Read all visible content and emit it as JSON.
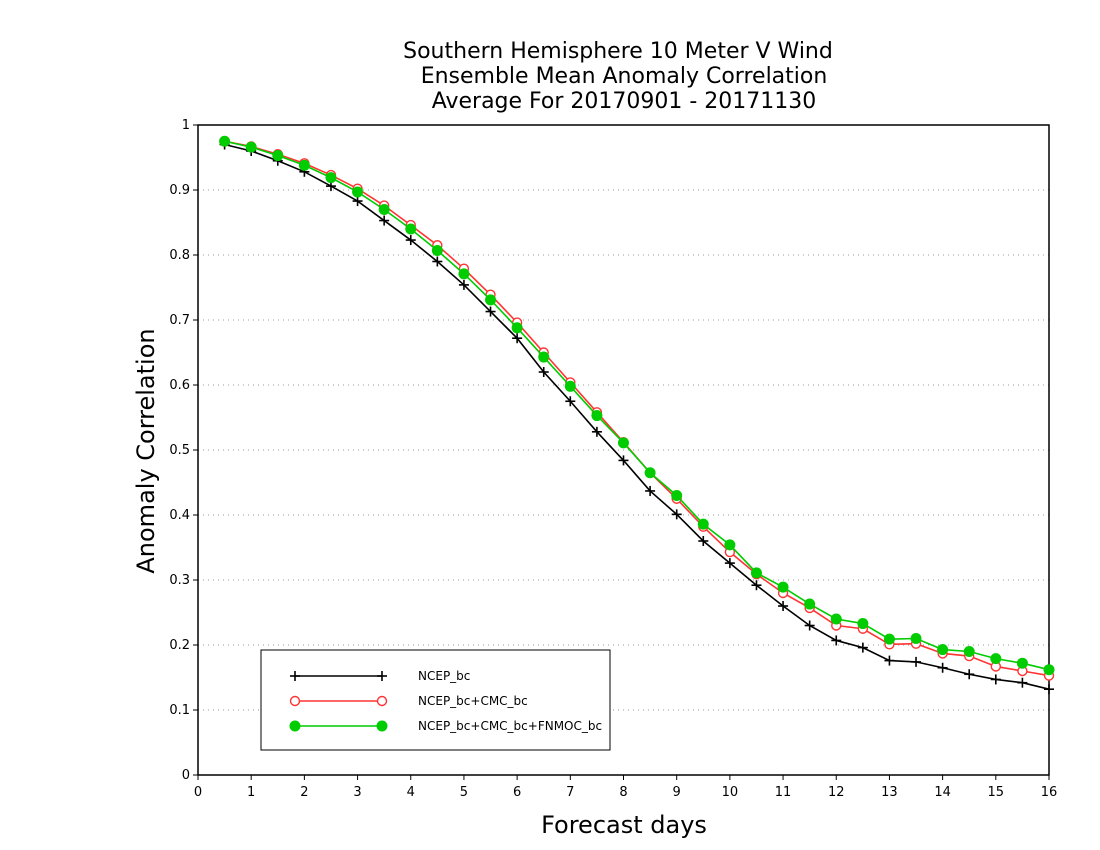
{
  "chart_data": {
    "type": "line",
    "title": [
      "Southern Hemisphere 10 Meter V Wind",
      "Ensemble Mean Anomaly Correlation",
      "Average For 20170901 - 20171130"
    ],
    "xlabel": "Forecast days",
    "ylabel": "Anomaly Correlation",
    "xlim": [
      0,
      16
    ],
    "ylim": [
      0,
      1
    ],
    "xticks": [
      "0",
      "1",
      "2",
      "3",
      "4",
      "5",
      "6",
      "7",
      "8",
      "9",
      "10",
      "11",
      "12",
      "13",
      "14",
      "15",
      "16"
    ],
    "yticks": [
      "0",
      "0.1",
      "0.2",
      "0.3",
      "0.4",
      "0.5",
      "0.6",
      "0.7",
      "0.8",
      "0.9",
      "1"
    ],
    "grid": "horizontal dotted",
    "legend_position": "bottom-left",
    "x": [
      0.5,
      1,
      1.5,
      2,
      2.5,
      3,
      3.5,
      4,
      4.5,
      5,
      5.5,
      6,
      6.5,
      7,
      7.5,
      8,
      8.5,
      9,
      9.5,
      10,
      10.5,
      11,
      11.5,
      12,
      12.5,
      13,
      13.5,
      14,
      14.5,
      15,
      15.5,
      16
    ],
    "series": [
      {
        "name": "NCEP_bc",
        "color": "#000000",
        "marker": "plus",
        "values": [
          0.97,
          0.96,
          0.945,
          0.928,
          0.906,
          0.883,
          0.853,
          0.823,
          0.79,
          0.754,
          0.713,
          0.672,
          0.62,
          0.575,
          0.528,
          0.484,
          0.437,
          0.401,
          0.36,
          0.326,
          0.292,
          0.26,
          0.23,
          0.207,
          0.196,
          0.176,
          0.174,
          0.165,
          0.155,
          0.147,
          0.142,
          0.132
        ]
      },
      {
        "name": "NCEP_bc+CMC_bc",
        "color": "#ff3333",
        "marker": "open-circle",
        "values": [
          0.975,
          0.967,
          0.955,
          0.941,
          0.923,
          0.902,
          0.876,
          0.846,
          0.815,
          0.779,
          0.739,
          0.696,
          0.65,
          0.604,
          0.558,
          0.512,
          0.465,
          0.425,
          0.382,
          0.343,
          0.309,
          0.28,
          0.257,
          0.23,
          0.225,
          0.201,
          0.202,
          0.187,
          0.183,
          0.167,
          0.16,
          0.153
        ]
      },
      {
        "name": "NCEP_bc+CMC_bc+FNMOC_bc",
        "color": "#00cc00",
        "marker": "filled-circle",
        "values": [
          0.975,
          0.966,
          0.953,
          0.938,
          0.919,
          0.897,
          0.87,
          0.84,
          0.807,
          0.771,
          0.731,
          0.688,
          0.643,
          0.598,
          0.553,
          0.511,
          0.465,
          0.43,
          0.386,
          0.354,
          0.311,
          0.289,
          0.263,
          0.24,
          0.233,
          0.209,
          0.21,
          0.193,
          0.19,
          0.179,
          0.172,
          0.162
        ]
      }
    ]
  }
}
